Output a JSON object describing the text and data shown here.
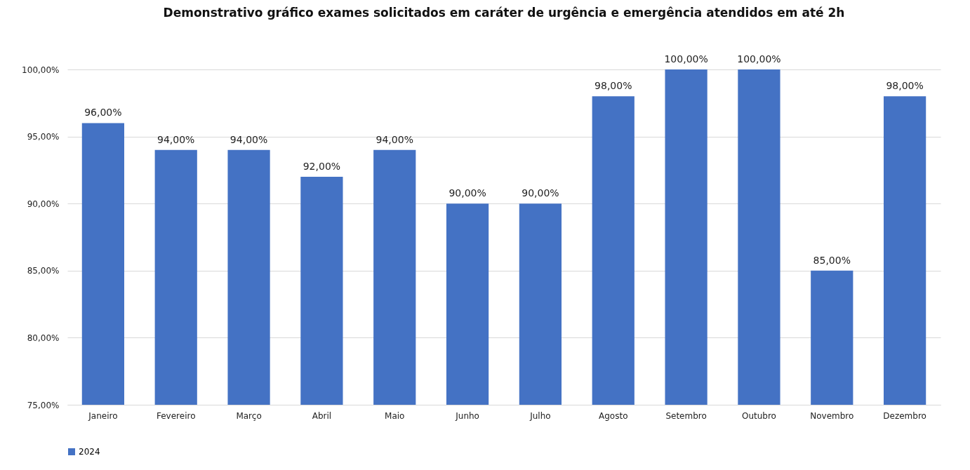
{
  "chart_data": {
    "type": "bar",
    "title": "Demonstrativo gráfico exames solicitados em caráter de urgência e emergência atendidos em até 2h",
    "categories": [
      "Janeiro",
      "Fevereiro",
      "Março",
      "Abril",
      "Maio",
      "Junho",
      "Julho",
      "Agosto",
      "Setembro",
      "Outubro",
      "Novembro",
      "Dezembro"
    ],
    "series": [
      {
        "name": "2024",
        "color": "#4472c4",
        "values": [
          96,
          94,
          94,
          92,
          94,
          90,
          90,
          98,
          100,
          100,
          85,
          98
        ],
        "value_labels": [
          "96,00%",
          "94,00%",
          "94,00%",
          "92,00%",
          "94,00%",
          "90,00%",
          "90,00%",
          "98,00%",
          "100,00%",
          "100,00%",
          "85,00%",
          "98,00%"
        ]
      }
    ],
    "ylim": [
      75,
      100
    ],
    "yticks": [
      {
        "value": 75,
        "label": "75,00%"
      },
      {
        "value": 80,
        "label": "80,00%"
      },
      {
        "value": 85,
        "label": "85,00%"
      },
      {
        "value": 90,
        "label": "90,00%"
      },
      {
        "value": 95,
        "label": "95,00%"
      },
      {
        "value": 100,
        "label": "100,00%"
      }
    ],
    "grid": "y",
    "legend": "bottom"
  }
}
